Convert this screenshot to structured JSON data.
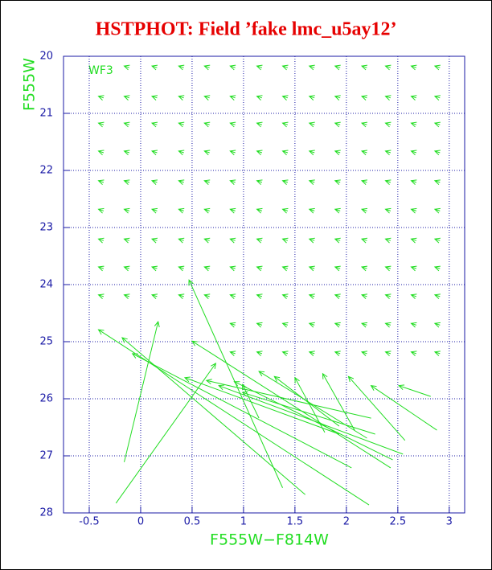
{
  "chart_data": {
    "type": "quiver",
    "title": "HSTPHOT: Field ’fake lmc_u5ay12’",
    "x_label": "F555W−F814W",
    "y_label": "F555W",
    "annotation": "WF3",
    "xlim": [
      -0.75,
      3.15
    ],
    "ylim": [
      28,
      20
    ],
    "xticks": [
      -0.5,
      0,
      0.5,
      1,
      1.5,
      2,
      2.5,
      3
    ],
    "yticks": [
      20,
      21,
      22,
      23,
      24,
      25,
      26,
      27,
      28
    ],
    "grid": true,
    "color": "#22dd22",
    "axis_color": "#1a1aa6",
    "title_color": "#e60000",
    "arrows": [
      [
        -0.11,
        20.2,
        -0.16,
        20.17
      ],
      [
        0.16,
        20.2,
        0.11,
        20.17
      ],
      [
        0.42,
        20.2,
        0.37,
        20.17
      ],
      [
        0.67,
        20.2,
        0.62,
        20.17
      ],
      [
        0.92,
        20.2,
        0.87,
        20.17
      ],
      [
        1.18,
        20.2,
        1.13,
        20.17
      ],
      [
        1.43,
        20.2,
        1.38,
        20.17
      ],
      [
        1.69,
        20.2,
        1.64,
        20.17
      ],
      [
        1.94,
        20.2,
        1.89,
        20.17
      ],
      [
        2.2,
        20.2,
        2.15,
        20.17
      ],
      [
        2.43,
        20.2,
        2.38,
        20.17
      ],
      [
        2.68,
        20.2,
        2.63,
        20.17
      ],
      [
        2.91,
        20.2,
        2.86,
        20.17
      ],
      [
        -0.36,
        20.73,
        -0.41,
        20.7
      ],
      [
        -0.11,
        20.73,
        -0.16,
        20.7
      ],
      [
        0.16,
        20.73,
        0.11,
        20.7
      ],
      [
        0.42,
        20.73,
        0.37,
        20.7
      ],
      [
        0.67,
        20.73,
        0.62,
        20.7
      ],
      [
        0.92,
        20.73,
        0.87,
        20.7
      ],
      [
        1.18,
        20.73,
        1.13,
        20.7
      ],
      [
        1.43,
        20.73,
        1.38,
        20.7
      ],
      [
        1.69,
        20.73,
        1.64,
        20.7
      ],
      [
        1.94,
        20.73,
        1.89,
        20.7
      ],
      [
        2.2,
        20.73,
        2.15,
        20.7
      ],
      [
        2.43,
        20.73,
        2.38,
        20.7
      ],
      [
        2.68,
        20.73,
        2.63,
        20.7
      ],
      [
        2.91,
        20.73,
        2.86,
        20.7
      ],
      [
        -0.36,
        21.2,
        -0.41,
        21.17
      ],
      [
        -0.11,
        21.2,
        -0.16,
        21.17
      ],
      [
        0.16,
        21.2,
        0.11,
        21.17
      ],
      [
        0.42,
        21.2,
        0.37,
        21.17
      ],
      [
        0.67,
        21.2,
        0.62,
        21.17
      ],
      [
        0.92,
        21.2,
        0.87,
        21.17
      ],
      [
        1.18,
        21.2,
        1.13,
        21.17
      ],
      [
        1.43,
        21.2,
        1.38,
        21.17
      ],
      [
        1.69,
        21.2,
        1.64,
        21.17
      ],
      [
        1.94,
        21.2,
        1.89,
        21.17
      ],
      [
        2.2,
        21.2,
        2.15,
        21.17
      ],
      [
        2.43,
        21.2,
        2.38,
        21.17
      ],
      [
        2.68,
        21.2,
        2.63,
        21.17
      ],
      [
        2.91,
        21.2,
        2.86,
        21.17
      ],
      [
        -0.36,
        21.69,
        -0.41,
        21.66
      ],
      [
        -0.11,
        21.69,
        -0.16,
        21.66
      ],
      [
        0.16,
        21.69,
        0.11,
        21.66
      ],
      [
        0.42,
        21.69,
        0.37,
        21.66
      ],
      [
        0.67,
        21.69,
        0.62,
        21.66
      ],
      [
        0.92,
        21.69,
        0.87,
        21.66
      ],
      [
        1.18,
        21.69,
        1.13,
        21.66
      ],
      [
        1.43,
        21.69,
        1.38,
        21.66
      ],
      [
        1.69,
        21.69,
        1.64,
        21.66
      ],
      [
        1.94,
        21.69,
        1.89,
        21.66
      ],
      [
        2.2,
        21.69,
        2.15,
        21.66
      ],
      [
        2.43,
        21.69,
        2.38,
        21.66
      ],
      [
        2.68,
        21.69,
        2.63,
        21.66
      ],
      [
        2.91,
        21.69,
        2.86,
        21.66
      ],
      [
        -0.36,
        22.21,
        -0.41,
        22.18
      ],
      [
        -0.11,
        22.21,
        -0.16,
        22.18
      ],
      [
        0.16,
        22.21,
        0.11,
        22.18
      ],
      [
        0.42,
        22.21,
        0.37,
        22.18
      ],
      [
        0.67,
        22.21,
        0.62,
        22.18
      ],
      [
        0.92,
        22.21,
        0.87,
        22.18
      ],
      [
        1.18,
        22.21,
        1.13,
        22.18
      ],
      [
        1.43,
        22.21,
        1.38,
        22.18
      ],
      [
        1.69,
        22.21,
        1.64,
        22.18
      ],
      [
        1.94,
        22.21,
        1.89,
        22.18
      ],
      [
        2.2,
        22.21,
        2.15,
        22.18
      ],
      [
        2.43,
        22.21,
        2.38,
        22.18
      ],
      [
        2.68,
        22.21,
        2.63,
        22.18
      ],
      [
        2.91,
        22.21,
        2.86,
        22.18
      ],
      [
        -0.36,
        22.71,
        -0.41,
        22.68
      ],
      [
        -0.11,
        22.71,
        -0.16,
        22.68
      ],
      [
        0.16,
        22.71,
        0.11,
        22.68
      ],
      [
        0.42,
        22.71,
        0.37,
        22.68
      ],
      [
        0.67,
        22.71,
        0.62,
        22.68
      ],
      [
        0.92,
        22.71,
        0.87,
        22.68
      ],
      [
        1.18,
        22.71,
        1.13,
        22.68
      ],
      [
        1.43,
        22.71,
        1.38,
        22.68
      ],
      [
        1.69,
        22.71,
        1.64,
        22.68
      ],
      [
        1.94,
        22.71,
        1.89,
        22.68
      ],
      [
        2.2,
        22.71,
        2.15,
        22.68
      ],
      [
        2.43,
        22.71,
        2.38,
        22.68
      ],
      [
        2.68,
        22.71,
        2.63,
        22.68
      ],
      [
        2.91,
        22.71,
        2.86,
        22.68
      ],
      [
        -0.36,
        23.23,
        -0.41,
        23.2
      ],
      [
        -0.11,
        23.23,
        -0.16,
        23.2
      ],
      [
        0.16,
        23.23,
        0.11,
        23.2
      ],
      [
        0.42,
        23.23,
        0.37,
        23.2
      ],
      [
        0.67,
        23.23,
        0.62,
        23.2
      ],
      [
        0.92,
        23.23,
        0.87,
        23.2
      ],
      [
        1.18,
        23.23,
        1.13,
        23.2
      ],
      [
        1.43,
        23.23,
        1.38,
        23.2
      ],
      [
        1.69,
        23.23,
        1.64,
        23.2
      ],
      [
        1.94,
        23.23,
        1.89,
        23.2
      ],
      [
        2.2,
        23.23,
        2.15,
        23.2
      ],
      [
        2.43,
        23.23,
        2.38,
        23.2
      ],
      [
        2.68,
        23.23,
        2.63,
        23.2
      ],
      [
        2.91,
        23.23,
        2.86,
        23.2
      ],
      [
        -0.36,
        23.72,
        -0.41,
        23.69
      ],
      [
        -0.11,
        23.72,
        -0.16,
        23.69
      ],
      [
        0.16,
        23.72,
        0.11,
        23.69
      ],
      [
        0.42,
        23.72,
        0.37,
        23.69
      ],
      [
        0.67,
        23.72,
        0.62,
        23.69
      ],
      [
        0.92,
        23.72,
        0.87,
        23.69
      ],
      [
        1.18,
        23.72,
        1.13,
        23.69
      ],
      [
        1.43,
        23.72,
        1.38,
        23.69
      ],
      [
        1.69,
        23.72,
        1.64,
        23.69
      ],
      [
        1.94,
        23.72,
        1.89,
        23.69
      ],
      [
        2.2,
        23.72,
        2.15,
        23.69
      ],
      [
        2.43,
        23.72,
        2.38,
        23.69
      ],
      [
        2.68,
        23.72,
        2.63,
        23.69
      ],
      [
        2.91,
        23.72,
        2.86,
        23.69
      ],
      [
        -0.36,
        24.21,
        -0.41,
        24.18
      ],
      [
        -0.11,
        24.21,
        -0.16,
        24.18
      ],
      [
        0.16,
        24.21,
        0.11,
        24.18
      ],
      [
        0.42,
        24.21,
        0.37,
        24.18
      ],
      [
        0.67,
        24.21,
        0.62,
        24.18
      ],
      [
        0.92,
        24.21,
        0.87,
        24.18
      ],
      [
        1.18,
        24.21,
        1.13,
        24.18
      ],
      [
        1.43,
        24.21,
        1.38,
        24.18
      ],
      [
        1.69,
        24.21,
        1.64,
        24.18
      ],
      [
        1.94,
        24.21,
        1.89,
        24.18
      ],
      [
        2.2,
        24.21,
        2.15,
        24.18
      ],
      [
        2.43,
        24.21,
        2.38,
        24.18
      ],
      [
        2.68,
        24.21,
        2.63,
        24.18
      ],
      [
        2.91,
        24.21,
        2.86,
        24.18
      ],
      [
        0.92,
        24.71,
        0.87,
        24.68
      ],
      [
        1.18,
        24.71,
        1.13,
        24.68
      ],
      [
        1.43,
        24.71,
        1.38,
        24.68
      ],
      [
        1.69,
        24.71,
        1.64,
        24.68
      ],
      [
        1.94,
        24.71,
        1.89,
        24.68
      ],
      [
        2.2,
        24.71,
        2.15,
        24.68
      ],
      [
        2.43,
        24.71,
        2.38,
        24.68
      ],
      [
        2.68,
        24.71,
        2.63,
        24.68
      ],
      [
        2.91,
        24.71,
        2.86,
        24.68
      ],
      [
        0.92,
        25.21,
        0.87,
        25.18
      ],
      [
        1.18,
        25.21,
        1.13,
        25.18
      ],
      [
        1.43,
        25.21,
        1.38,
        25.18
      ],
      [
        1.69,
        25.21,
        1.64,
        25.18
      ],
      [
        1.94,
        25.21,
        1.89,
        25.18
      ],
      [
        2.2,
        25.21,
        2.15,
        25.18
      ],
      [
        2.43,
        25.21,
        2.38,
        25.18
      ],
      [
        2.68,
        25.21,
        2.63,
        25.18
      ],
      [
        2.91,
        25.21,
        2.86,
        25.18
      ],
      [
        1.38,
        27.56,
        0.47,
        23.92
      ],
      [
        2.22,
        27.86,
        -0.41,
        24.79
      ],
      [
        1.6,
        27.68,
        -0.18,
        24.93
      ],
      [
        2.05,
        27.21,
        -0.08,
        25.21
      ],
      [
        -0.16,
        27.11,
        0.17,
        24.65
      ],
      [
        -0.24,
        27.83,
        0.73,
        25.38
      ],
      [
        2.43,
        27.21,
        0.5,
        24.99
      ],
      [
        1.93,
        26.62,
        0.43,
        25.63
      ],
      [
        2.24,
        26.34,
        0.64,
        25.68
      ],
      [
        2.55,
        26.97,
        0.76,
        25.77
      ],
      [
        2.45,
        27.07,
        0.91,
        25.7
      ],
      [
        2.28,
        26.62,
        0.99,
        25.89
      ],
      [
        2.2,
        26.69,
        1.15,
        25.52
      ],
      [
        1.93,
        26.48,
        1.3,
        25.61
      ],
      [
        1.79,
        26.59,
        1.5,
        25.63
      ],
      [
        2.08,
        26.55,
        1.77,
        25.56
      ],
      [
        2.57,
        26.73,
        2.02,
        25.61
      ],
      [
        2.88,
        26.55,
        2.24,
        25.77
      ],
      [
        2.82,
        25.96,
        2.51,
        25.77
      ],
      [
        1.15,
        26.34,
        0.99,
        25.75
      ]
    ]
  }
}
